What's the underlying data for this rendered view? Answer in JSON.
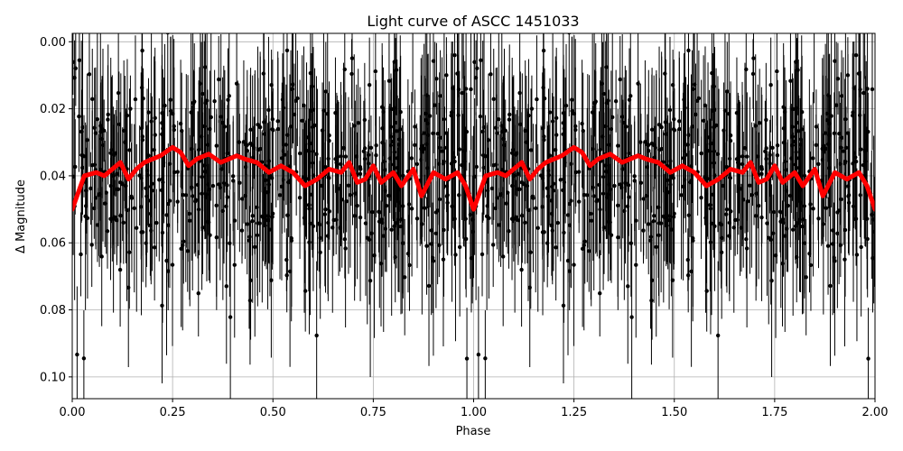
{
  "chart_data": {
    "type": "scatter",
    "title": "Light curve of ASCC 1451033",
    "xlabel": "Phase",
    "ylabel": "Δ Magnitude",
    "xlim": [
      0.0,
      2.0
    ],
    "ylim": [
      0.1065,
      -0.0025
    ],
    "y_inverted": true,
    "grid": true,
    "x_ticks": [
      "0.00",
      "0.25",
      "0.50",
      "0.75",
      "1.00",
      "1.25",
      "1.50",
      "1.75",
      "2.00"
    ],
    "x_tick_values": [
      0.0,
      0.25,
      0.5,
      0.75,
      1.0,
      1.25,
      1.5,
      1.75,
      2.0
    ],
    "y_ticks": [
      "0.00",
      "0.02",
      "0.04",
      "0.06",
      "0.08",
      "0.10"
    ],
    "y_tick_values": [
      0.0,
      0.02,
      0.04,
      0.06,
      0.08,
      0.1
    ],
    "series": [
      {
        "kind": "errorbar-points",
        "color": "#000000",
        "description": "Phase-folded photometric measurements with error bars, repeated over two cycles",
        "points_per_cycle": 600,
        "median_mag": 0.039,
        "scatter_sigma": 0.015,
        "typical_error": 0.018
      },
      {
        "kind": "line",
        "color": "#ff0000",
        "description": "Binned/smoothed mean light curve",
        "x": [
          0.0,
          0.03,
          0.06,
          0.08,
          0.1,
          0.12,
          0.14,
          0.16,
          0.18,
          0.2,
          0.22,
          0.25,
          0.27,
          0.29,
          0.31,
          0.34,
          0.37,
          0.39,
          0.41,
          0.43,
          0.46,
          0.49,
          0.52,
          0.55,
          0.58,
          0.61,
          0.64,
          0.67,
          0.69,
          0.71,
          0.73,
          0.75,
          0.77,
          0.8,
          0.82,
          0.85,
          0.87,
          0.9,
          0.93,
          0.96,
          0.98,
          1.0,
          1.03,
          1.06,
          1.08,
          1.1,
          1.12,
          1.14,
          1.16,
          1.18,
          1.2,
          1.22,
          1.25,
          1.27,
          1.29,
          1.31,
          1.34,
          1.37,
          1.39,
          1.41,
          1.43,
          1.46,
          1.49,
          1.52,
          1.55,
          1.58,
          1.61,
          1.64,
          1.67,
          1.69,
          1.71,
          1.73,
          1.75,
          1.77,
          1.8,
          1.82,
          1.85,
          1.87,
          1.9,
          1.93,
          1.96,
          1.98,
          2.0
        ],
        "y": [
          0.05,
          0.04,
          0.039,
          0.04,
          0.038,
          0.036,
          0.041,
          0.038,
          0.036,
          0.035,
          0.034,
          0.0315,
          0.033,
          0.037,
          0.035,
          0.0335,
          0.036,
          0.035,
          0.034,
          0.035,
          0.036,
          0.039,
          0.037,
          0.039,
          0.043,
          0.041,
          0.038,
          0.039,
          0.036,
          0.042,
          0.041,
          0.037,
          0.042,
          0.039,
          0.043,
          0.038,
          0.046,
          0.039,
          0.041,
          0.039,
          0.043,
          0.05,
          0.04,
          0.039,
          0.04,
          0.038,
          0.036,
          0.041,
          0.038,
          0.036,
          0.035,
          0.034,
          0.0315,
          0.033,
          0.037,
          0.035,
          0.0335,
          0.036,
          0.035,
          0.034,
          0.035,
          0.036,
          0.039,
          0.037,
          0.039,
          0.043,
          0.041,
          0.038,
          0.039,
          0.036,
          0.042,
          0.041,
          0.037,
          0.042,
          0.039,
          0.043,
          0.038,
          0.046,
          0.039,
          0.041,
          0.039,
          0.043,
          0.05
        ]
      }
    ]
  }
}
